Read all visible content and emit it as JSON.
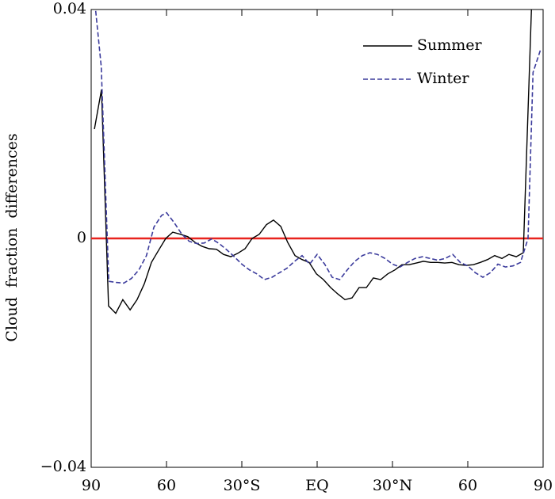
{
  "chart_data": {
    "type": "line",
    "ylabel": "Cloud fraction differences",
    "xlim": [
      -90,
      90
    ],
    "xticks": [
      {
        "value": -90,
        "label": "90"
      },
      {
        "value": -60,
        "label": "60"
      },
      {
        "value": -30,
        "label": "30°S"
      },
      {
        "value": 0,
        "label": "EQ"
      },
      {
        "value": 30,
        "label": "30°N"
      },
      {
        "value": 60,
        "label": "60"
      },
      {
        "value": 90,
        "label": "90"
      }
    ],
    "ylim": [
      -0.04,
      0.04
    ],
    "yticks": [
      {
        "value": -0.04,
        "label": "−0.04"
      },
      0,
      0.04
    ],
    "reference_line": {
      "value": 0,
      "color": "#e8231e"
    },
    "legend": "upper right",
    "series": [
      {
        "name": "Summer",
        "color": "#000000",
        "dash": false,
        "x": [
          -88.7,
          -85.9,
          -83.1,
          -80.2,
          -77.4,
          -74.5,
          -71.7,
          -68.8,
          -66.0,
          -63.2,
          -60.3,
          -57.5,
          -54.3,
          -51.5,
          -48.6,
          -45.8,
          -43.0,
          -40.1,
          -37.3,
          -34.4,
          -31.6,
          -28.7,
          -25.9,
          -23.1,
          -20.2,
          -17.4,
          -14.5,
          -11.7,
          -8.8,
          -6.0,
          -3.2,
          -0.3,
          2.5,
          5.4,
          8.2,
          11.1,
          13.9,
          16.7,
          19.6,
          22.4,
          25.3,
          28.1,
          31.0,
          33.8,
          36.6,
          39.5,
          42.3,
          45.2,
          48.0,
          50.8,
          53.7,
          56.5,
          59.4,
          62.2,
          65.0,
          67.9,
          70.7,
          73.6,
          76.4,
          79.3,
          82.1,
          85.4
        ],
        "values": [
          0.0191,
          0.026,
          -0.0118,
          -0.0131,
          -0.0107,
          -0.0125,
          -0.0107,
          -0.0079,
          -0.0042,
          -0.0021,
          0,
          0.0011,
          0.0007,
          0.0003,
          -0.0007,
          -0.0014,
          -0.0018,
          -0.0019,
          -0.0028,
          -0.0032,
          -0.0026,
          -0.0018,
          0,
          0.0007,
          0.0024,
          0.0032,
          0.0021,
          -0.0007,
          -0.003,
          -0.0037,
          -0.0042,
          -0.0062,
          -0.0072,
          -0.0086,
          -0.0097,
          -0.0107,
          -0.0104,
          -0.0086,
          -0.0086,
          -0.0069,
          -0.0072,
          -0.0062,
          -0.0055,
          -0.0046,
          -0.0046,
          -0.0043,
          -0.004,
          -0.0042,
          -0.0042,
          -0.0043,
          -0.0042,
          -0.0046,
          -0.0047,
          -0.0046,
          -0.0042,
          -0.0037,
          -0.003,
          -0.0035,
          -0.0028,
          -0.0032,
          -0.0025,
          0.0405
        ]
      },
      {
        "name": "Winter",
        "color": "#3b3b9c",
        "dash": true,
        "x": [
          -88.5,
          -86,
          -83,
          -80,
          -77,
          -74,
          -71,
          -68,
          -65,
          -62,
          -60,
          -57,
          -54,
          -51,
          -48,
          -45,
          -42,
          -39,
          -36,
          -33,
          -30,
          -27,
          -24,
          -21,
          -18,
          -15,
          -12,
          -9,
          -6,
          -3,
          0,
          3,
          6,
          9,
          12,
          15,
          18,
          21,
          24,
          27,
          30,
          33,
          36,
          39,
          42,
          45,
          48,
          51,
          54,
          57,
          60,
          63,
          66,
          69,
          72,
          75,
          78,
          81,
          84,
          86,
          89
        ],
        "values": [
          0.041,
          0.03,
          -0.0075,
          -0.0077,
          -0.0078,
          -0.007,
          -0.0055,
          -0.003,
          0.002,
          0.004,
          0.0045,
          0.0028,
          0.0008,
          -0.0005,
          -0.0009,
          -0.0008,
          -0.0001,
          -0.0009,
          -0.002,
          -0.0032,
          -0.0045,
          -0.0055,
          -0.0062,
          -0.0072,
          -0.0068,
          -0.006,
          -0.0052,
          -0.004,
          -0.003,
          -0.0045,
          -0.0028,
          -0.0045,
          -0.0068,
          -0.0072,
          -0.0055,
          -0.004,
          -0.003,
          -0.0025,
          -0.0028,
          -0.0035,
          -0.0045,
          -0.005,
          -0.0042,
          -0.0035,
          -0.0032,
          -0.0035,
          -0.0038,
          -0.0035,
          -0.0028,
          -0.0042,
          -0.0048,
          -0.006,
          -0.0068,
          -0.006,
          -0.0045,
          -0.005,
          -0.0048,
          -0.0042,
          0.0,
          0.029,
          0.033
        ]
      }
    ]
  }
}
